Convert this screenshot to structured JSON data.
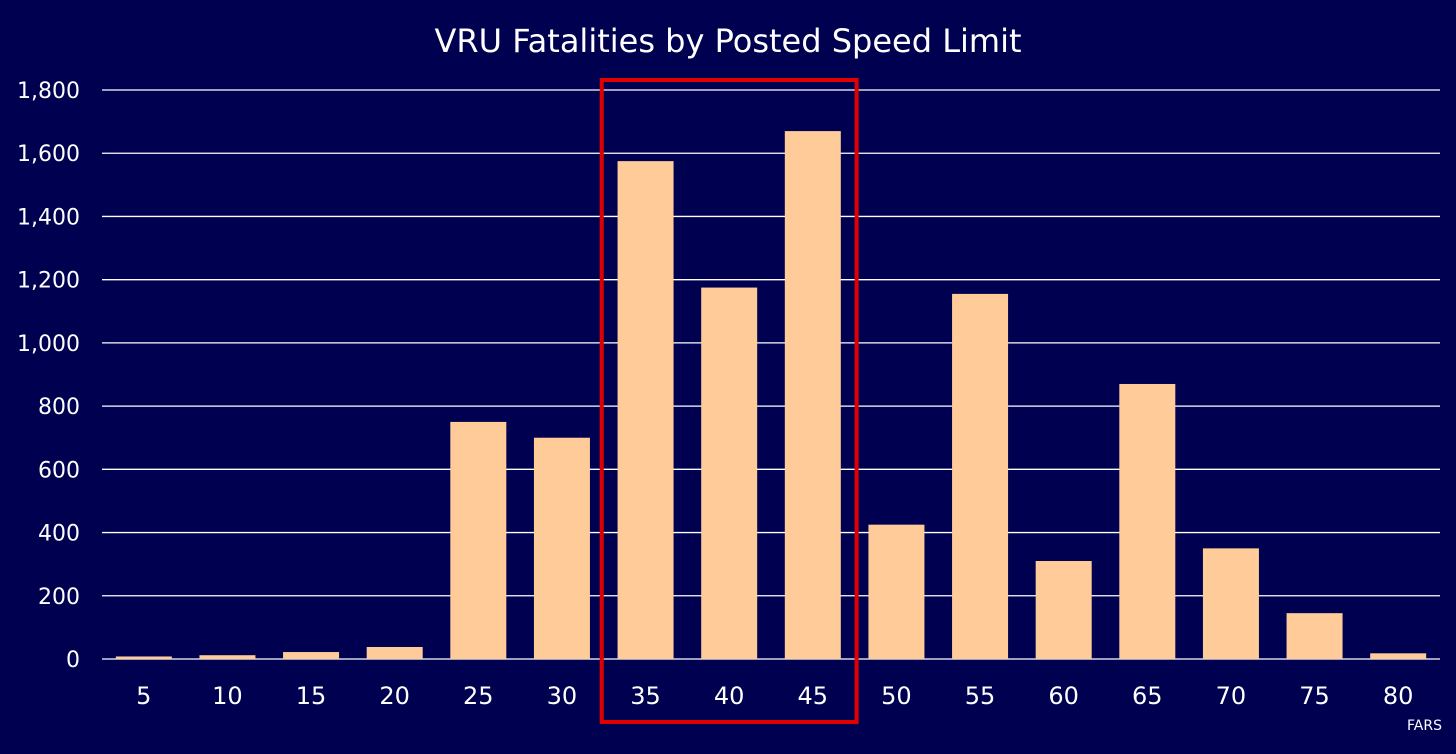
{
  "colors": {
    "background": "#000050",
    "bar": "#ffcc99",
    "grid": "#ffffff",
    "text": "#ffffff",
    "highlight": "#e00000"
  },
  "source": "FARS",
  "chart_data": {
    "type": "bar",
    "title": "VRU Fatalities by Posted Speed Limit",
    "xlabel": "",
    "ylabel": "",
    "categories": [
      "5",
      "10",
      "15",
      "20",
      "25",
      "30",
      "35",
      "40",
      "45",
      "50",
      "55",
      "60",
      "65",
      "70",
      "75",
      "80"
    ],
    "values": [
      8,
      12,
      22,
      38,
      750,
      700,
      1575,
      1175,
      1670,
      425,
      1155,
      310,
      870,
      350,
      145,
      18
    ],
    "ylim": [
      0,
      1800
    ],
    "yticks": [
      0,
      200,
      400,
      600,
      800,
      1000,
      1200,
      1400,
      1600,
      1800
    ],
    "ytick_labels": [
      "0",
      "200",
      "400",
      "600",
      "800",
      "1,000",
      "1,200",
      "1,400",
      "1,600",
      "1,800"
    ],
    "grid": true,
    "legend": "none",
    "highlight_categories": [
      "35",
      "40",
      "45"
    ]
  }
}
